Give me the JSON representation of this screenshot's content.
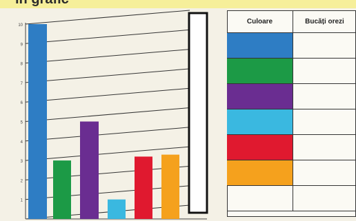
{
  "title": "în grafic",
  "colors": {
    "blue": "#2e7dc4",
    "green": "#1c9a46",
    "purple": "#6a2d91",
    "cyan": "#3ab8e0",
    "red": "#e0192f",
    "orange": "#f5a11d"
  },
  "chart_data": {
    "type": "bar",
    "yticks": [
      "1",
      "2",
      "3",
      "4",
      "5",
      "6",
      "7",
      "8",
      "9",
      "10"
    ],
    "ylim": [
      0,
      10
    ],
    "values": [
      10,
      3,
      5,
      1,
      3.2,
      3.3
    ],
    "bar_colors": [
      "#2e7dc4",
      "#1c9a46",
      "#6a2d91",
      "#3ab8e0",
      "#e0192f",
      "#f5a11d"
    ],
    "empty_bar": true,
    "grid": true
  },
  "table": {
    "headers": [
      "Culoare",
      "Bucăți orezi"
    ],
    "row_colors": [
      "#2e7dc4",
      "#1c9a46",
      "#6a2d91",
      "#3ab8e0",
      "#e0192f",
      "#f5a11d",
      ""
    ]
  }
}
